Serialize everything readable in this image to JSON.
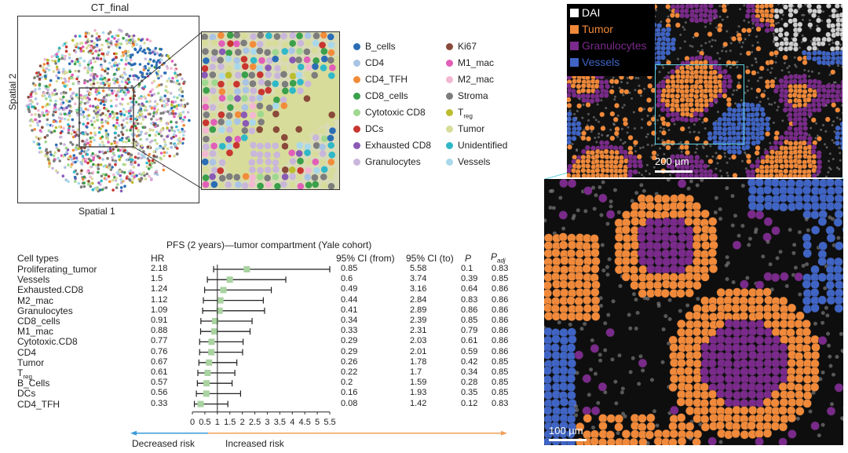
{
  "panel_a": {
    "title": "CT_final",
    "x_label": "Spatial 1",
    "y_label": "Spatial 2"
  },
  "legend": {
    "col1": [
      {
        "label": "B_cells",
        "color": "#2a6db5"
      },
      {
        "label": "CD4",
        "color": "#a9c4e4"
      },
      {
        "label": "CD4_TFH",
        "color": "#f28c3a"
      },
      {
        "label": "CD8_cells",
        "color": "#3aa04a"
      },
      {
        "label": "Cytotoxic CD8",
        "color": "#9fd88f"
      },
      {
        "label": "DCs",
        "color": "#c8362f"
      },
      {
        "label": "Exhausted CD8",
        "color": "#8a5ab6"
      },
      {
        "label": "Granulocytes",
        "color": "#c9b6db"
      }
    ],
    "col2": [
      {
        "label": "Ki67",
        "color": "#8a4a3a"
      },
      {
        "label": "M1_mac",
        "color": "#e25fb8"
      },
      {
        "label": "M2_mac",
        "color": "#f3b7d2"
      },
      {
        "label": "Stroma",
        "color": "#7d7d7d"
      },
      {
        "label": "T",
        "sub": "reg",
        "color": "#bcbc2f"
      },
      {
        "label": "Tumor",
        "color": "#d7dc9a"
      },
      {
        "label": "Unidentified",
        "color": "#2fb8c8"
      },
      {
        "label": "Vessels",
        "color": "#a8d8ea"
      }
    ]
  },
  "forest": {
    "title": "PFS (2 years)—tumor compartment (Yale cohort)",
    "headers": {
      "cell_types": "Cell types",
      "hr": "HR",
      "ci_from": "95% CI (from)",
      "ci_to": "95% CI (to)",
      "p": "P",
      "padj": "P",
      "padj_sub": "adj"
    },
    "rows": [
      {
        "name": "Proliferating_tumor",
        "hr": "2.18",
        "lo": "0.85",
        "hi": "5.58",
        "p": "0.1",
        "padj": "0.83"
      },
      {
        "name": "Vessels",
        "hr": "1.5",
        "lo": "0.6",
        "hi": "3.74",
        "p": "0.39",
        "padj": "0.85"
      },
      {
        "name": "Exhausted.CD8",
        "hr": "1.24",
        "lo": "0.49",
        "hi": "3.16",
        "p": "0.64",
        "padj": "0.86"
      },
      {
        "name": "M2_mac",
        "hr": "1.12",
        "lo": "0.44",
        "hi": "2.84",
        "p": "0.83",
        "padj": "0.86"
      },
      {
        "name": "Granulocytes",
        "hr": "1.09",
        "lo": "0.41",
        "hi": "2.89",
        "p": "0.86",
        "padj": "0.86"
      },
      {
        "name": "CD8_cells",
        "hr": "0.91",
        "lo": "0.34",
        "hi": "2.39",
        "p": "0.85",
        "padj": "0.86"
      },
      {
        "name": "M1_mac",
        "hr": "0.88",
        "lo": "0.33",
        "hi": "2.31",
        "p": "0.79",
        "padj": "0.86"
      },
      {
        "name": "Cytotoxic.CD8",
        "hr": "0.77",
        "lo": "0.29",
        "hi": "2.03",
        "p": "0.61",
        "padj": "0.86"
      },
      {
        "name": "CD4",
        "hr": "0.76",
        "lo": "0.29",
        "hi": "2.01",
        "p": "0.59",
        "padj": "0.86"
      },
      {
        "name": "Tumor",
        "hr": "0.67",
        "lo": "0.26",
        "hi": "1.78",
        "p": "0.42",
        "padj": "0.85"
      },
      {
        "name": "T",
        "sub": "reg",
        "hr": "0.61",
        "lo": "0.22",
        "hi": "1.7",
        "p": "0.34",
        "padj": "0.85"
      },
      {
        "name": "B_Cells",
        "hr": "0.57",
        "lo": "0.2",
        "hi": "1.59",
        "p": "0.28",
        "padj": "0.85"
      },
      {
        "name": "DCs",
        "hr": "0.56",
        "lo": "0.16",
        "hi": "1.93",
        "p": "0.35",
        "padj": "0.85"
      },
      {
        "name": "CD4_TFH",
        "hr": "0.33",
        "lo": "0.08",
        "hi": "1.42",
        "p": "0.12",
        "padj": "0.83"
      }
    ],
    "decreased": "Decreased risk",
    "increased": "Increased risk",
    "colors": {
      "marker": "#a9d3a0",
      "decreased_arrow": "#3a9ad9",
      "increased_arrow": "#f0a05a"
    }
  },
  "chart_data": {
    "type": "forest",
    "title": "PFS (2 years)—tumor compartment (Yale cohort)",
    "xlim": [
      0,
      5.5
    ],
    "x_ticks": [
      "0",
      "0.5",
      "1",
      "1.5",
      "2",
      "2.5",
      "3",
      "3.5",
      "4",
      "4.5",
      "5",
      "5.5"
    ],
    "categories": [
      "Proliferating_tumor",
      "Vessels",
      "Exhausted.CD8",
      "M2_mac",
      "Granulocytes",
      "CD8_cells",
      "M1_mac",
      "Cytotoxic.CD8",
      "CD4",
      "Tumor",
      "Treg",
      "B_Cells",
      "DCs",
      "CD4_TFH"
    ],
    "hr": [
      2.18,
      1.5,
      1.24,
      1.12,
      1.09,
      0.91,
      0.88,
      0.77,
      0.76,
      0.67,
      0.61,
      0.57,
      0.56,
      0.33
    ],
    "ci_low": [
      0.85,
      0.6,
      0.49,
      0.44,
      0.41,
      0.34,
      0.33,
      0.29,
      0.29,
      0.26,
      0.22,
      0.2,
      0.16,
      0.08
    ],
    "ci_high": [
      5.58,
      3.74,
      3.16,
      2.84,
      2.89,
      2.39,
      2.31,
      2.03,
      2.01,
      1.78,
      1.7,
      1.59,
      1.93,
      1.42
    ],
    "reference_line": 1
  },
  "micro": {
    "legend": [
      {
        "label": "DAI",
        "color": "#ffffff"
      },
      {
        "label": "Tumor",
        "color": "#f0893a"
      },
      {
        "label": "Granulocytes",
        "color": "#7a2a8a"
      },
      {
        "label": "Vessels",
        "color": "#3f64c4"
      }
    ],
    "scale_top": "200 µm",
    "scale_bottom": "100 µm",
    "zoom_box_color": "#5fd0e0"
  }
}
